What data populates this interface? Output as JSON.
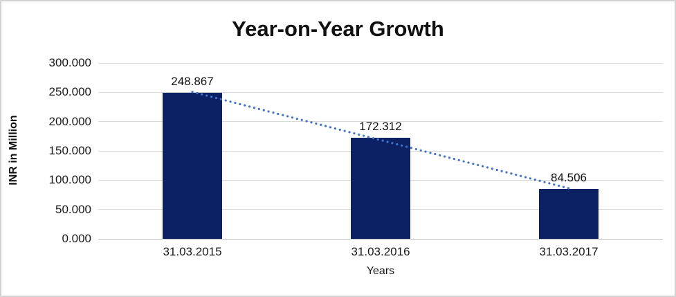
{
  "chart_data": {
    "type": "bar",
    "title": "Year-on-Year Growth",
    "xlabel": "Years",
    "ylabel": "INR in Million",
    "categories": [
      "31.03.2015",
      "31.03.2016",
      "31.03.2017"
    ],
    "values": [
      248.867,
      172.312,
      84.506
    ],
    "data_labels": [
      "248.867",
      "172.312",
      "84.506"
    ],
    "y_ticks": [
      "0.000",
      "50.000",
      "100.000",
      "150.000",
      "200.000",
      "250.000",
      "300.000"
    ],
    "y_tick_values": [
      0,
      50,
      100,
      150,
      200,
      250,
      300
    ],
    "ylim": [
      0,
      300
    ],
    "grid": true,
    "legend": false,
    "bar_color": "#0b2163",
    "trendline": {
      "type": "linear",
      "style": "dotted",
      "color": "#4472c4"
    },
    "gridline_color": "#d9d9d9",
    "axis_line_color": "#bfbfbf"
  }
}
